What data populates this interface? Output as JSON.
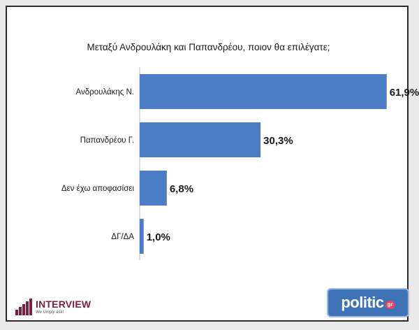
{
  "chart_data": {
    "type": "bar",
    "orientation": "horizontal",
    "title": "Μεταξύ Ανδρουλάκη και Παπανδρέου, ποιον θα επιλέγατε;",
    "categories": [
      "Ανδρουλάκης Ν.",
      "Παπανδρέου Γ.",
      "Δεν έχω αποφασίσει",
      "ΔΓ/ΔΑ"
    ],
    "values": [
      61.9,
      30.3,
      6.8,
      1.0
    ],
    "value_labels": [
      "61,9%",
      "30,3%",
      "6,8%",
      "1,0%"
    ],
    "xlim": [
      0,
      70
    ],
    "xlabel": "",
    "ylabel": "",
    "grid": false
  },
  "colors": {
    "bar": "#4a7dc5",
    "text": "#1a1a1a",
    "axis": "#bfbfbf"
  },
  "logos": {
    "interview_name": "INTERVIEW",
    "interview_tagline": "We simply ask!",
    "politic_word": "politic",
    "politic_badge": "gr"
  }
}
